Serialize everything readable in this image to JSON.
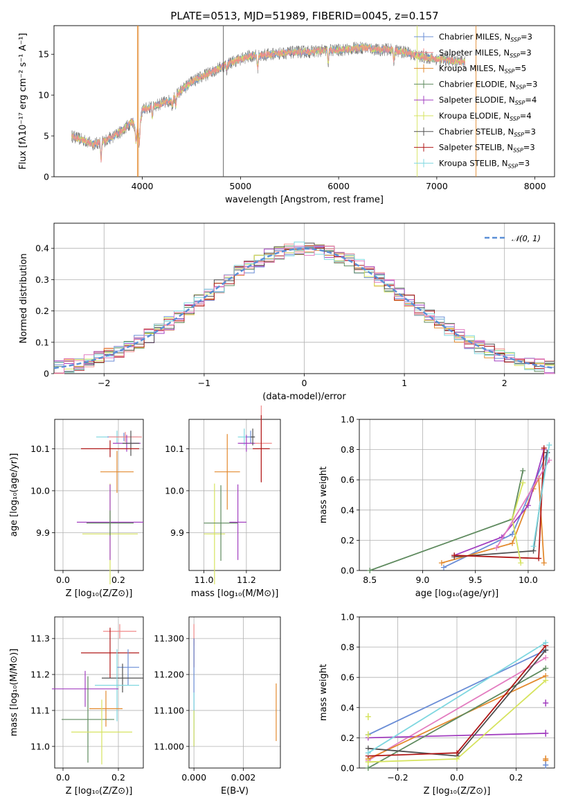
{
  "title": "PLATE=0513, MJD=51989, FIBERID=0045, z=0.157",
  "colors": {
    "Chabrier MILES": "#6a8dd6",
    "Salpeter MILES": "#f08a8a",
    "Kroupa MILES": "#e38a2e",
    "Chabrier ELODIE": "#5e8a5e",
    "Salpeter ELODIE": "#a23fc0",
    "Kroupa ELODIE": "#d6e35e",
    "Chabrier STELIB": "#505050",
    "Salpeter STELIB": "#b01818",
    "Kroupa STELIB": "#7fd7e0",
    "extra_pink": "#e37cc0",
    "gaussian": "#5a8fd6"
  },
  "chart_data": [
    {
      "id": "spectrum",
      "type": "line",
      "title": "PLATE=0513, MJD=51989, FIBERID=0045, z=0.157",
      "xlabel": "wavelength [Angstrom, rest frame]",
      "ylabel": "Flux [fλ10⁻¹⁷ erg cm⁻² s⁻¹ A⁻¹]",
      "xlim": [
        3100,
        8200
      ],
      "ylim": [
        0,
        18.5
      ],
      "xticks": [
        4000,
        5000,
        6000,
        7000,
        8000
      ],
      "yticks": [
        0,
        5,
        10,
        15
      ],
      "legend_position": "right",
      "legend": [
        {
          "name": "Chabrier MILES",
          "text": "Chabrier MILES, N_SSP=3"
        },
        {
          "name": "Salpeter MILES",
          "text": "Salpeter MILES, N_SSP=3"
        },
        {
          "name": "Kroupa MILES",
          "text": "Kroupa MILES, N_SSP=5"
        },
        {
          "name": "Chabrier ELODIE",
          "text": "Chabrier ELODIE, N_SSP=3"
        },
        {
          "name": "Salpeter ELODIE",
          "text": "Salpeter ELODIE, N_SSP=4"
        },
        {
          "name": "Kroupa ELODIE",
          "text": "Kroupa ELODIE, N_SSP=4"
        },
        {
          "name": "Chabrier STELIB",
          "text": "Chabrier STELIB, N_SSP=3"
        },
        {
          "name": "Salpeter STELIB",
          "text": "Salpeter STELIB, N_SSP=3"
        },
        {
          "name": "Kroupa STELIB",
          "text": "Kroupa STELIB, N_SSP=3"
        }
      ],
      "continuum": [
        [
          3280,
          5.0
        ],
        [
          3500,
          4.0
        ],
        [
          3600,
          4.3
        ],
        [
          3700,
          4.9
        ],
        [
          3800,
          5.7
        ],
        [
          3900,
          6.8
        ],
        [
          3960,
          5.2
        ],
        [
          4000,
          8.2
        ],
        [
          4100,
          8.6
        ],
        [
          4200,
          9.0
        ],
        [
          4300,
          9.4
        ],
        [
          4400,
          10.6
        ],
        [
          4500,
          11.6
        ],
        [
          4600,
          12.2
        ],
        [
          4700,
          12.8
        ],
        [
          4800,
          13.4
        ],
        [
          4900,
          14.0
        ],
        [
          5000,
          14.4
        ],
        [
          5100,
          14.8
        ],
        [
          5200,
          14.8
        ],
        [
          5300,
          15.0
        ],
        [
          5400,
          15.1
        ],
        [
          5500,
          15.2
        ],
        [
          5600,
          15.3
        ],
        [
          5700,
          15.3
        ],
        [
          5800,
          15.4
        ],
        [
          5900,
          15.5
        ],
        [
          6000,
          15.5
        ],
        [
          6100,
          15.6
        ],
        [
          6200,
          15.8
        ],
        [
          6300,
          15.8
        ],
        [
          6400,
          15.5
        ],
        [
          6500,
          15.6
        ],
        [
          6600,
          15.4
        ],
        [
          6700,
          15.2
        ],
        [
          6800,
          14.8
        ],
        [
          6900,
          14.6
        ],
        [
          7000,
          14.4
        ],
        [
          7100,
          14.3
        ],
        [
          7200,
          14.1
        ],
        [
          7290,
          14.0
        ]
      ],
      "absorption_lines": [
        [
          3580,
          0
        ],
        [
          3934,
          3.0
        ],
        [
          3969,
          2.5
        ],
        [
          4102,
          6.5
        ],
        [
          4305,
          8.0
        ],
        [
          4340,
          7.5
        ],
        [
          4861,
          12.5
        ],
        [
          5175,
          12.0
        ],
        [
          5894,
          12.5
        ],
        [
          6563,
          13.0
        ]
      ],
      "spikes": [
        [
          4826,
          0
        ],
        [
          6800,
          0
        ],
        [
          7400,
          0
        ],
        [
          3960,
          0
        ],
        [
          3950,
          0
        ]
      ]
    },
    {
      "id": "residual_hist",
      "type": "bar",
      "xlabel": "(data-model)/error",
      "ylabel": "Normed distribution",
      "xlim": [
        -2.5,
        2.5
      ],
      "ylim": [
        0,
        0.48
      ],
      "xticks": [
        -2,
        -1,
        0,
        1,
        2
      ],
      "yticks": [
        0.0,
        0.1,
        0.2,
        0.3,
        0.4
      ],
      "bin_width": 0.1,
      "legend": [
        {
          "name": "gaussian",
          "text": "𝒩(0, 1)"
        }
      ],
      "legend_position": "top-right",
      "gaussian": {
        "mean": 0,
        "sigma": 1
      }
    },
    {
      "id": "z_age",
      "type": "scatter",
      "xlabel": "Z [log₁₀(Z/Z⊙)]",
      "ylabel": "age  [log₁₀(age/yr)]",
      "xlim": [
        -0.03,
        0.29
      ],
      "ylim": [
        9.81,
        10.17
      ],
      "xticks": [
        0.0,
        0.2
      ],
      "yticks": [
        9.9,
        10.0,
        10.1
      ],
      "points": [
        {
          "s": "Kroupa STELIB",
          "x": 0.195,
          "y": 10.128,
          "xe": 0.075,
          "ye": 0.015
        },
        {
          "s": "Chabrier MILES",
          "x": 0.22,
          "y": 10.128,
          "xe": 0.06,
          "ye": 0.01
        },
        {
          "s": "Salpeter MILES",
          "x": 0.225,
          "y": 10.128,
          "xe": 0.06,
          "ye": 0.012
        },
        {
          "s": "Salpeter ELODIE",
          "x": 0.23,
          "y": 10.113,
          "xe": 0.05,
          "ye": 0.02
        },
        {
          "s": "Chabrier STELIB",
          "x": 0.245,
          "y": 10.113,
          "xe": 0.03,
          "ye": 0.03
        },
        {
          "s": "Salpeter STELIB",
          "x": 0.17,
          "y": 10.1,
          "xe": 0.105,
          "ye": 0.02
        },
        {
          "s": "Kroupa MILES",
          "x": 0.195,
          "y": 10.045,
          "xe": 0.06,
          "ye": 0.05
        },
        {
          "s": "Kroupa ELODIE",
          "x": 0.17,
          "y": 9.897,
          "xe": 0.1,
          "ye": 0.12
        },
        {
          "s": "Salpeter ELODIE",
          "x": 0.17,
          "y": 9.925,
          "xe": 0.12,
          "ye": 0.09
        },
        {
          "s": "Chabrier ELODIE",
          "x": 0.17,
          "y": 9.923,
          "xe": 0.085,
          "ye": 0.03
        }
      ]
    },
    {
      "id": "mass_age",
      "type": "scatter",
      "xlabel": "mass [log₁₀(M/M⊙)]",
      "ylabel": "",
      "xlim": [
        10.93,
        11.36
      ],
      "ylim": [
        9.81,
        10.17
      ],
      "xticks": [
        11.0,
        11.2
      ],
      "yticks": [
        9.9,
        10.0,
        10.1
      ],
      "points": [
        {
          "s": "Kroupa STELIB",
          "x": 11.19,
          "y": 10.128,
          "xe": 0.03,
          "ye": 0.02
        },
        {
          "s": "Chabrier MILES",
          "x": 11.22,
          "y": 10.128,
          "xe": 0.02,
          "ye": 0.015
        },
        {
          "s": "Salpeter MILES",
          "x": 11.27,
          "y": 10.113,
          "xe": 0.05,
          "ye": 0.09
        },
        {
          "s": "Salpeter ELODIE",
          "x": 11.2,
          "y": 10.113,
          "xe": 0.04,
          "ye": 0.02
        },
        {
          "s": "Salpeter STELIB",
          "x": 11.27,
          "y": 10.1,
          "xe": 0.04,
          "ye": 0.08
        },
        {
          "s": "Kroupa MILES",
          "x": 11.11,
          "y": 10.045,
          "xe": 0.06,
          "ye": 0.09
        },
        {
          "s": "Chabrier STELIB",
          "x": 11.23,
          "y": 10.128,
          "xe": 0.01,
          "ye": 0.02
        },
        {
          "s": "Kroupa ELODIE",
          "x": 11.05,
          "y": 9.897,
          "xe": 0.05,
          "ye": 0.12
        },
        {
          "s": "Salpeter ELODIE",
          "x": 11.16,
          "y": 9.925,
          "xe": 0.04,
          "ye": 0.09
        },
        {
          "s": "Chabrier ELODIE",
          "x": 11.08,
          "y": 9.923,
          "xe": 0.08,
          "ye": 0.09
        }
      ]
    },
    {
      "id": "mass_weight_age",
      "type": "line",
      "xlabel": "age  [log₁₀(age/yr)]",
      "ylabel": "mass weight",
      "xlim": [
        8.4,
        10.25
      ],
      "ylim": [
        0,
        1
      ],
      "xticks": [
        8.5,
        9.0,
        9.5,
        10.0
      ],
      "yticks": [
        0.0,
        0.2,
        0.4,
        0.6,
        0.8,
        1.0
      ],
      "series": [
        {
          "s": "Chabrier ELODIE",
          "pts": [
            [
              8.5,
              0.0
            ],
            [
              9.85,
              0.34
            ],
            [
              9.95,
              0.66
            ]
          ]
        },
        {
          "s": "Chabrier MILES",
          "pts": [
            [
              9.2,
              0.02
            ],
            [
              9.85,
              0.24
            ],
            [
              10.18,
              0.78
            ]
          ]
        },
        {
          "s": "Kroupa MILES",
          "pts": [
            [
              9.18,
              0.05
            ],
            [
              9.85,
              0.18
            ],
            [
              10.05,
              0.54
            ],
            [
              10.1,
              0.61
            ],
            [
              10.15,
              0.05
            ]
          ]
        },
        {
          "s": "Salpeter ELODIE",
          "pts": [
            [
              9.3,
              0.1
            ],
            [
              9.75,
              0.22
            ],
            [
              10.0,
              0.43
            ],
            [
              10.15,
              0.8
            ]
          ]
        },
        {
          "s": "Chabrier STELIB",
          "pts": [
            [
              9.3,
              0.09
            ],
            [
              10.05,
              0.13
            ],
            [
              10.18,
              0.78
            ]
          ]
        },
        {
          "s": "Salpeter STELIB",
          "pts": [
            [
              9.3,
              0.1
            ],
            [
              10.1,
              0.08
            ],
            [
              10.15,
              0.81
            ]
          ]
        },
        {
          "s": "Kroupa ELODIE",
          "pts": [
            [
              9.93,
              0.05
            ],
            [
              9.85,
              0.34
            ],
            [
              9.95,
              0.58
            ]
          ]
        },
        {
          "s": "extra_pink",
          "pts": [
            [
              9.7,
              0.15
            ],
            [
              10.2,
              0.73
            ]
          ]
        },
        {
          "s": "Kroupa STELIB",
          "pts": [
            [
              10.05,
              0.16
            ],
            [
              10.2,
              0.83
            ]
          ]
        }
      ]
    },
    {
      "id": "z_mass",
      "type": "scatter",
      "xlabel": "Z [log₁₀(Z/Z⊙)]",
      "ylabel": "mass [log₁₀(M/M⊙)]",
      "xlim": [
        -0.03,
        0.29
      ],
      "ylim": [
        10.94,
        11.36
      ],
      "xticks": [
        0.0,
        0.2
      ],
      "yticks": [
        11.0,
        11.1,
        11.2,
        11.3
      ],
      "points": [
        {
          "s": "Salpeter MILES",
          "x": 0.205,
          "y": 11.32,
          "xe": 0.06,
          "ye": 0.02
        },
        {
          "s": "Salpeter STELIB",
          "x": 0.17,
          "y": 11.26,
          "xe": 0.105,
          "ye": 0.07
        },
        {
          "s": "Chabrier MILES",
          "x": 0.235,
          "y": 11.22,
          "xe": 0.04,
          "ye": 0.05
        },
        {
          "s": "Chabrier STELIB",
          "x": 0.215,
          "y": 11.19,
          "xe": 0.075,
          "ye": 0.04
        },
        {
          "s": "Kroupa STELIB",
          "x": 0.195,
          "y": 11.17,
          "xe": 0.08,
          "ye": 0.1
        },
        {
          "s": "Salpeter ELODIE",
          "x": 0.08,
          "y": 11.16,
          "xe": 0.12,
          "ye": 0.05
        },
        {
          "s": "Kroupa MILES",
          "x": 0.155,
          "y": 11.105,
          "xe": 0.06,
          "ye": 0.05
        },
        {
          "s": "Chabrier ELODIE",
          "x": 0.09,
          "y": 11.075,
          "xe": 0.095,
          "ye": 0.12
        },
        {
          "s": "Kroupa ELODIE",
          "x": 0.14,
          "y": 11.04,
          "xe": 0.11,
          "ye": 0.09
        }
      ]
    },
    {
      "id": "ebv_mass",
      "type": "scatter",
      "xlabel": "E(B-V)",
      "ylabel": "",
      "xlim": [
        -0.0002,
        0.0035
      ],
      "ylim": [
        10.94,
        11.36
      ],
      "xticks": [
        0.0,
        0.002
      ],
      "yticks": [
        11.0,
        11.1,
        11.2,
        11.3
      ],
      "points": [
        {
          "s": "Salpeter MILES",
          "x": 0.0,
          "y": 11.31,
          "xe": 0,
          "ye": 0.03
        },
        {
          "s": "Salpeter STELIB",
          "x": 0.0,
          "y": 11.26,
          "xe": 0,
          "ye": 0.04
        },
        {
          "s": "Chabrier MILES",
          "x": 0.0,
          "y": 11.15,
          "xe": 0,
          "ye": 0.15
        },
        {
          "s": "Kroupa STELIB",
          "x": 0.0,
          "y": 11.1,
          "xe": 0,
          "ye": 0.05
        },
        {
          "s": "Kroupa ELODIE",
          "x": 0.0,
          "y": 11.05,
          "xe": 0,
          "ye": 0.05
        },
        {
          "s": "Kroupa MILES",
          "x": 0.00333,
          "y": 11.095,
          "xe": 0,
          "ye": 0.08
        }
      ]
    },
    {
      "id": "mass_weight_z",
      "type": "line",
      "xlabel": "Z [log₁₀(Z/Z⊙)]",
      "ylabel": "mass weight",
      "xlim": [
        -0.33,
        0.33
      ],
      "ylim": [
        0,
        1
      ],
      "xticks": [
        -0.2,
        0.0,
        0.2
      ],
      "yticks": [
        0.0,
        0.2,
        0.4,
        0.6,
        0.8,
        1.0
      ],
      "series": [
        {
          "s": "Chabrier MILES",
          "pts": [
            [
              -0.3,
              0.22
            ],
            [
              0.3,
              0.78
            ]
          ]
        },
        {
          "s": "extra_pink",
          "pts": [
            [
              -0.3,
              0.05
            ],
            [
              0.3,
              0.73
            ]
          ]
        },
        {
          "s": "Salpeter ELODIE",
          "pts": [
            [
              -0.3,
              0.2
            ],
            [
              0.3,
              0.23
            ]
          ]
        },
        {
          "s": "Kroupa MILES",
          "pts": [
            [
              -0.3,
              0.06
            ],
            [
              0.3,
              0.61
            ]
          ]
        },
        {
          "s": "Chabrier ELODIE",
          "pts": [
            [
              -0.3,
              0.0
            ],
            [
              0.3,
              0.66
            ]
          ]
        },
        {
          "s": "Chabrier STELIB",
          "pts": [
            [
              -0.3,
              0.13
            ],
            [
              0.0,
              0.08
            ],
            [
              0.3,
              0.78
            ]
          ]
        },
        {
          "s": "Salpeter STELIB",
          "pts": [
            [
              -0.3,
              0.08
            ],
            [
              0.0,
              0.1
            ],
            [
              0.3,
              0.81
            ]
          ]
        },
        {
          "s": "Kroupa ELODIE",
          "pts": [
            [
              -0.3,
              0.04
            ],
            [
              0.0,
              0.06
            ],
            [
              0.3,
              0.58
            ]
          ]
        },
        {
          "s": "Kroupa STELIB",
          "pts": [
            [
              -0.3,
              0.1
            ],
            [
              0.3,
              0.83
            ]
          ]
        }
      ],
      "vertical_ticks": [
        {
          "s": "Kroupa ELODIE",
          "x": -0.3,
          "ys": [
            0.34,
            0.22,
            0.04
          ]
        },
        {
          "s": "Kroupa MILES",
          "x": 0.3,
          "ys": [
            0.05,
            0.06
          ]
        },
        {
          "s": "Salpeter ELODIE",
          "x": 0.3,
          "ys": [
            0.43,
            0.23
          ]
        },
        {
          "s": "Chabrier MILES",
          "x": 0.3,
          "ys": [
            0.02
          ]
        }
      ]
    }
  ]
}
